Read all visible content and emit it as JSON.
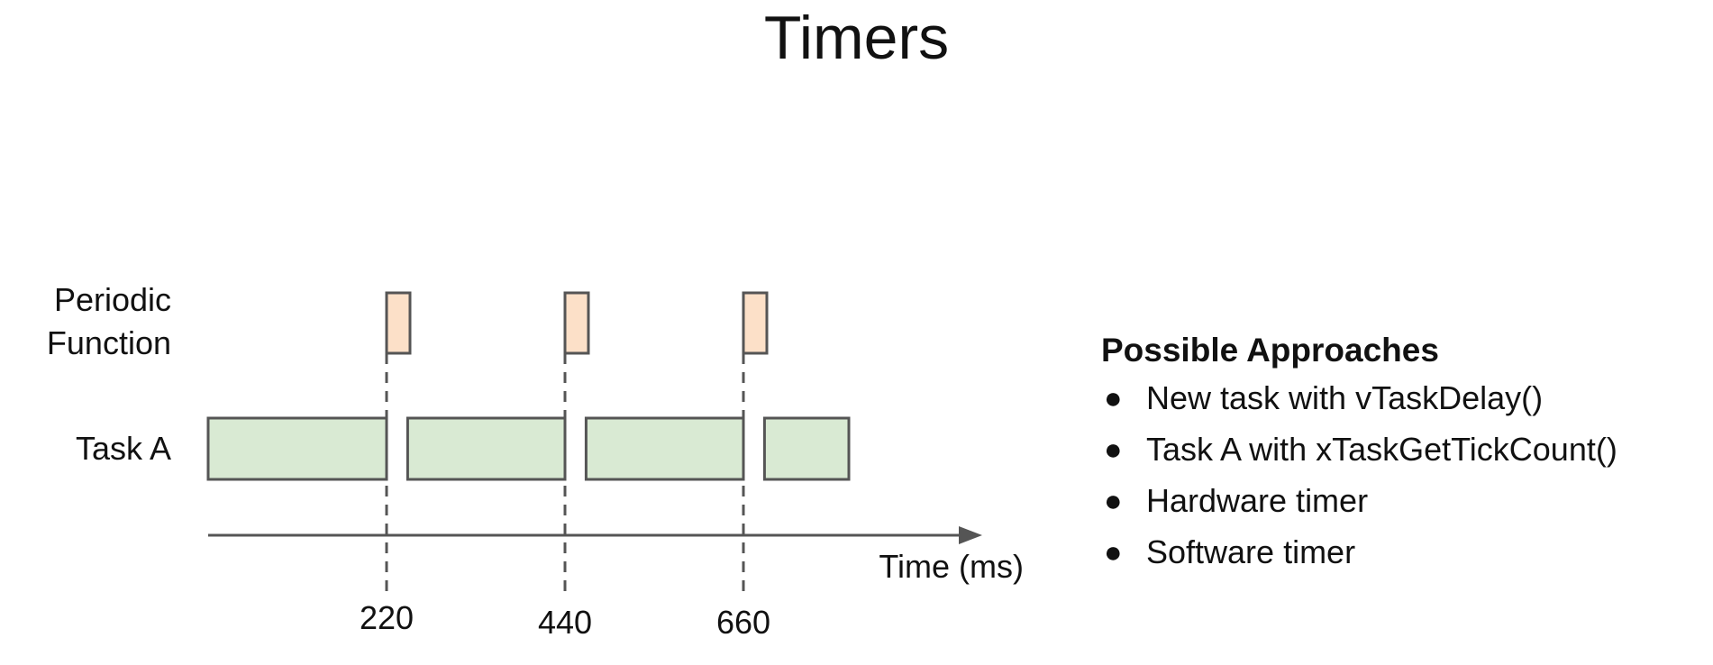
{
  "title": "Timers",
  "diagram": {
    "rows": {
      "periodic_label": [
        "Periodic",
        "Function"
      ],
      "task_label": "Task A"
    },
    "time_axis": {
      "label": "Time (ms)",
      "ticks": [
        "220",
        "440",
        "660"
      ],
      "tick_values": [
        220,
        440,
        660
      ]
    },
    "periodic_runs_ms": [
      220,
      440,
      660
    ],
    "task_a_segments_ms": [
      {
        "start": 0,
        "end": 220
      },
      {
        "start": 246,
        "end": 440
      },
      {
        "start": 466,
        "end": 660
      },
      {
        "start": 686,
        "end": 790
      }
    ],
    "colors": {
      "periodic_fill": "#fce0c8",
      "task_fill": "#d9ead3",
      "stroke": "#555555"
    }
  },
  "approaches": {
    "heading": "Possible Approaches",
    "items": [
      "New task with vTaskDelay()",
      "Task A with xTaskGetTickCount()",
      "Hardware timer",
      "Software timer"
    ]
  }
}
